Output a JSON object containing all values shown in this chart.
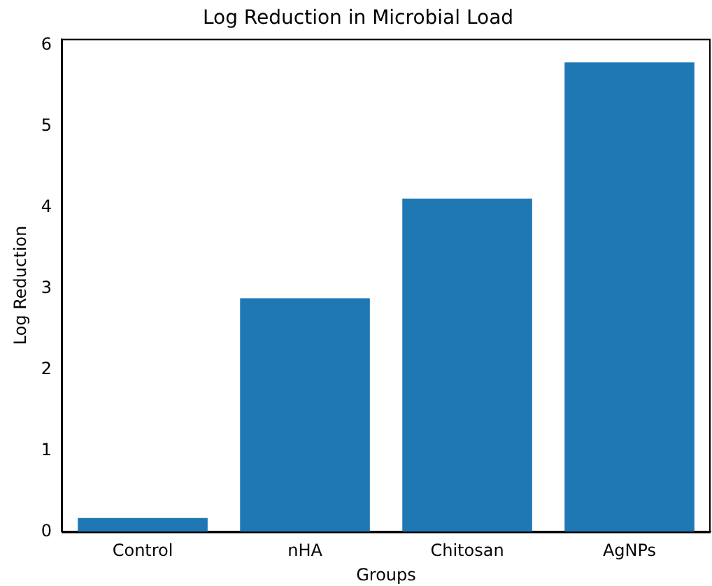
{
  "chart_data": {
    "type": "bar",
    "title": "Log Reduction in Microbial Load",
    "xlabel": "Groups",
    "ylabel": "Log Reduction",
    "categories": [
      "Control",
      "nHA",
      "Chitosan",
      "AgNPs"
    ],
    "values": [
      0.17,
      2.88,
      4.11,
      5.79
    ],
    "color": "#1f77b4",
    "ylim": [
      0,
      6.08
    ],
    "yticks": [
      0,
      1,
      2,
      3,
      4,
      5,
      6
    ],
    "grid": false,
    "legend": false
  }
}
